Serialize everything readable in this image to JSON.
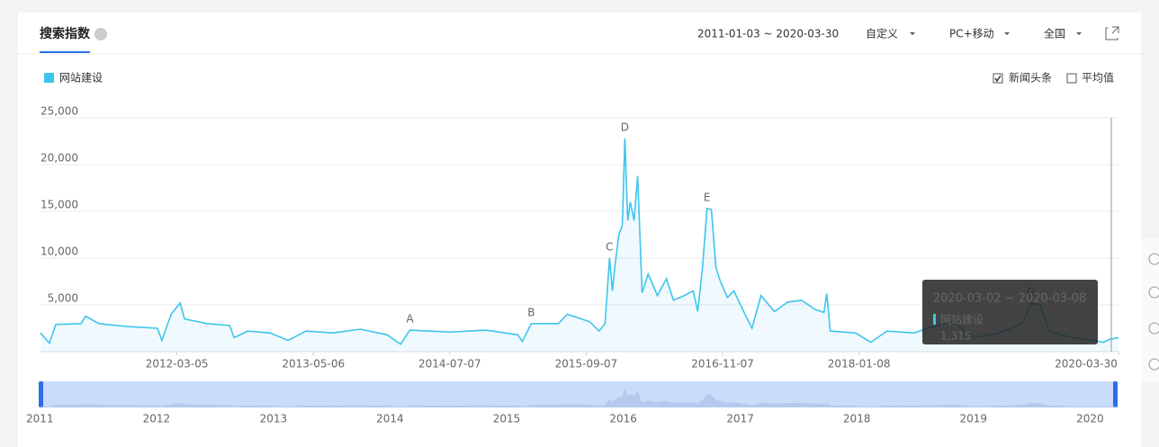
{
  "header": {
    "tab": "搜索指数",
    "date_range": "2011-01-03 ~ 2020-03-30",
    "period": "自定义",
    "device": "PC+移动",
    "region": "全国"
  },
  "options": {
    "news": {
      "label": "新闻头条",
      "checked": true
    },
    "average": {
      "label": "平均值",
      "checked": false
    }
  },
  "tooltip": {
    "date_range": "2020-03-02 ~ 2020-03-08",
    "value": 1315,
    "value_label": "1,315"
  },
  "navigator": {
    "years": [
      2011,
      2012,
      2013,
      2014,
      2015,
      2016,
      2017,
      2018,
      2019,
      2020
    ]
  },
  "chart_data": {
    "type": "line",
    "x": [
      "2011-01-03",
      "2011-01-31",
      "2011-02-20",
      "2011-05-10",
      "2011-05-24",
      "2011-07-05",
      "2011-09-28",
      "2012-01-04",
      "2012-01-18",
      "2012-02-16",
      "2012-03-15",
      "2012-03-29",
      "2012-06-07",
      "2012-08-17",
      "2012-08-31",
      "2012-10-12",
      "2012-12-22",
      "2013-02-16",
      "2013-04-13",
      "2013-07-07",
      "2013-09-30",
      "2013-12-23",
      "2014-02-03",
      "2014-03-04",
      "2014-07-08",
      "2014-10-29",
      "2015-02-05",
      "2015-02-19",
      "2015-03-19",
      "2015-06-12",
      "2015-07-10",
      "2015-09-18",
      "2015-10-17",
      "2015-11-05",
      "2015-11-19",
      "2015-11-28",
      "2015-12-06",
      "2015-12-18",
      "2015-12-29",
      "2016-01-06",
      "2016-01-15",
      "2016-01-23",
      "2016-02-04",
      "2016-02-15",
      "2016-02-29",
      "2016-03-19",
      "2016-04-17",
      "2016-05-15",
      "2016-06-06",
      "2016-07-10",
      "2016-08-07",
      "2016-08-21",
      "2016-09-05",
      "2016-09-19",
      "2016-10-03",
      "2016-10-17",
      "2016-10-31",
      "2016-11-22",
      "2016-12-12",
      "2017-01-09",
      "2017-02-07",
      "2017-03-07",
      "2017-04-18",
      "2017-05-30",
      "2017-07-12",
      "2017-08-23",
      "2017-09-20",
      "2017-09-29",
      "2017-10-10",
      "2017-12-28",
      "2018-02-14",
      "2018-04-05",
      "2018-06-29",
      "2018-08-10",
      "2018-11-02",
      "2018-12-29",
      "2019-03-23",
      "2019-06-02",
      "2019-06-30",
      "2019-07-29",
      "2019-08-26",
      "2019-11-04",
      "2020-01-14",
      "2020-02-11",
      "2020-03-02",
      "2020-03-30"
    ],
    "series": [
      {
        "name": "网站建设",
        "color": "#3ec5ec",
        "values": [
          2000,
          900,
          2900,
          3000,
          3800,
          3000,
          2700,
          2500,
          1200,
          4000,
          5200,
          3500,
          3000,
          2800,
          1500,
          2200,
          2000,
          1200,
          2200,
          2000,
          2400,
          1800,
          800,
          2300,
          2100,
          2300,
          1800,
          1100,
          3000,
          3000,
          4000,
          3200,
          2200,
          3000,
          10000,
          6500,
          9200,
          12500,
          13500,
          22800,
          14000,
          16000,
          14000,
          18800,
          6300,
          8300,
          6000,
          7800,
          5500,
          6000,
          6500,
          4300,
          9000,
          15300,
          15200,
          9000,
          7500,
          5800,
          6500,
          4500,
          2500,
          6000,
          4300,
          5300,
          5500,
          4500,
          4200,
          6200,
          2200,
          2000,
          1000,
          2200,
          2000,
          2500,
          3200,
          1500,
          2000,
          3000,
          5200,
          5000,
          2200,
          1500,
          1200,
          1000,
          1315,
          1500
        ]
      }
    ],
    "annotations": [
      {
        "label": "A",
        "x": "2014-03-04"
      },
      {
        "label": "B",
        "x": "2015-03-19"
      },
      {
        "label": "C",
        "x": "2015-11-19"
      },
      {
        "label": "D",
        "x": "2016-01-06"
      },
      {
        "label": "E",
        "x": "2016-09-19"
      },
      {
        "label": "G",
        "x": "2019-06-30"
      }
    ],
    "xlim": [
      "2011-01-03",
      "2020-03-30"
    ],
    "xticks": [
      "2012-03-05",
      "2013-05-06",
      "2014-07-07",
      "2015-09-07",
      "2016-11-07",
      "2018-01-08",
      "2020-03-30"
    ],
    "ylim": [
      0,
      25000
    ],
    "yticks": [
      {
        "value": 5000,
        "label": "5,000"
      },
      {
        "value": 10000,
        "label": "10,000"
      },
      {
        "value": 15000,
        "label": "15,000"
      },
      {
        "value": 20000,
        "label": "20,000"
      },
      {
        "value": 25000,
        "label": "25,000"
      }
    ],
    "grid": true
  }
}
